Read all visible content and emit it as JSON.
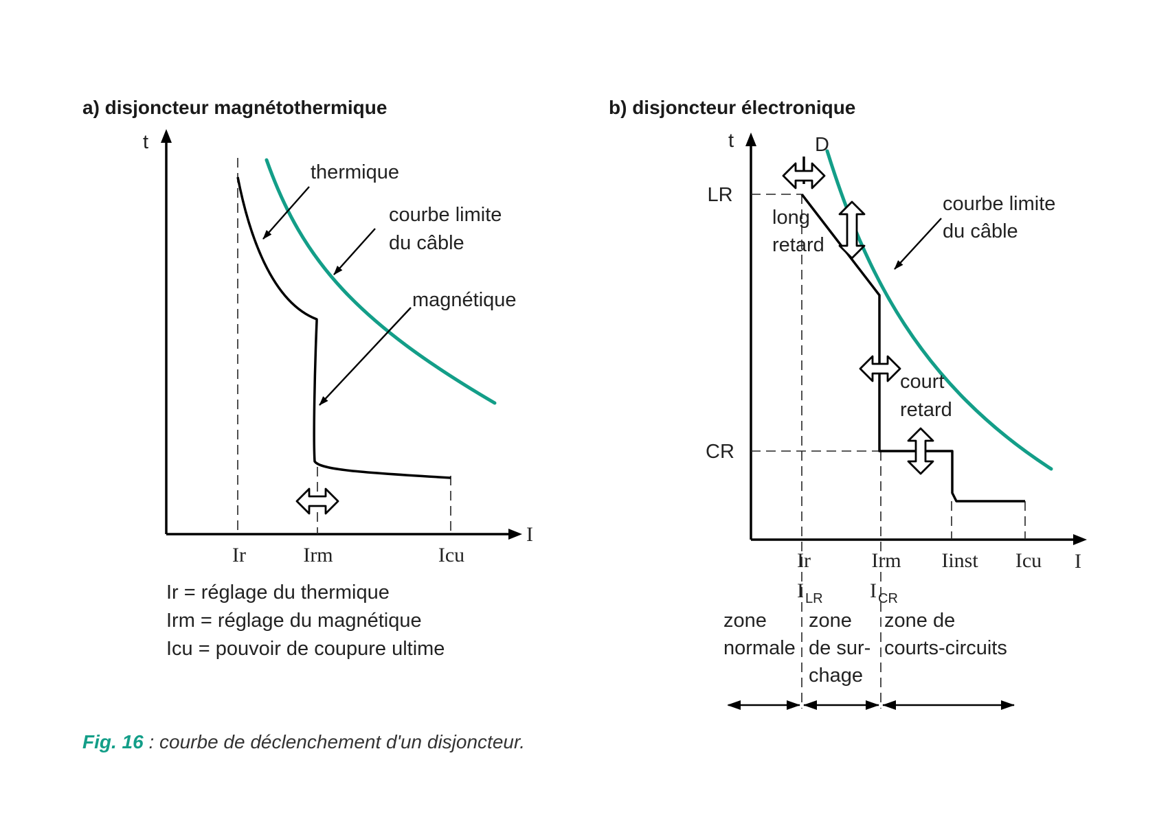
{
  "colors": {
    "cable_curve": "#139e88",
    "caption_accent": "#139e88"
  },
  "panel_a": {
    "title": "a) disjoncteur magnétothermique",
    "axis_y": "t",
    "axis_x": "I",
    "ticks": [
      "Ir",
      "Irm",
      "Icu"
    ],
    "labels": {
      "thermique": "thermique",
      "courbe_1": "courbe limite",
      "courbe_2": "du câble",
      "magnetique": "magnétique"
    },
    "legend": [
      "Ir = réglage du thermique",
      "Irm = réglage du magnétique",
      "Icu = pouvoir de coupure ultime"
    ]
  },
  "panel_b": {
    "title": "b) disjoncteur électronique",
    "axis_y": "t",
    "axis_x": "I",
    "y_ticks": [
      "LR",
      "CR"
    ],
    "ticks": [
      "Ir",
      "Irm",
      "Iinst",
      "Icu"
    ],
    "sub_ticks": [
      {
        "main": "I",
        "sub": "LR"
      },
      {
        "main": "I",
        "sub": "CR"
      }
    ],
    "labels": {
      "d": "D",
      "long_1": "long",
      "long_2": "retard",
      "court_1": "court",
      "court_2": "retard",
      "courbe_1": "courbe limite",
      "courbe_2": "du câble"
    },
    "zones": [
      {
        "lines": [
          "zone",
          "normale"
        ]
      },
      {
        "lines": [
          "zone",
          "de sur-",
          "chage"
        ]
      },
      {
        "lines": [
          "zone de",
          "courts-circuits"
        ]
      }
    ]
  },
  "caption": {
    "fig": "Fig. 16",
    "text": " : courbe de déclenchement d'un disjoncteur."
  }
}
